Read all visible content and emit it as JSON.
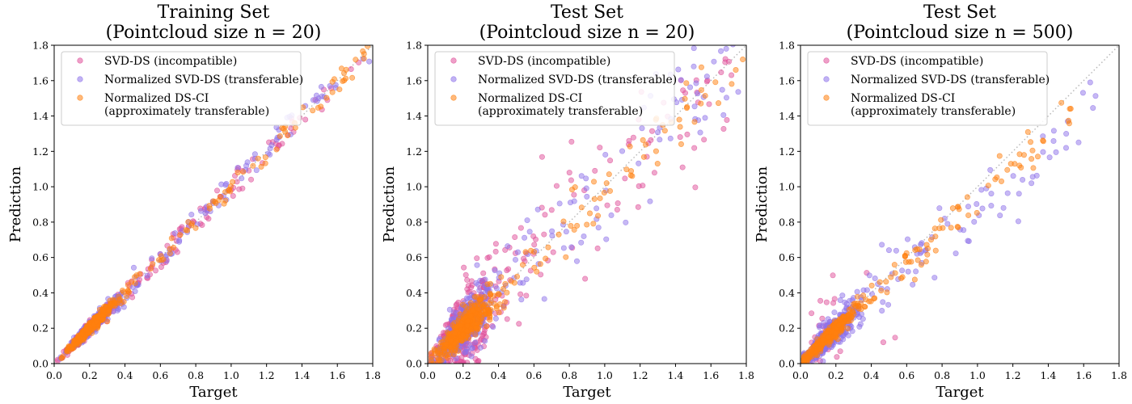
{
  "figure": {
    "colors": {
      "svd_ds": "#e0509a",
      "normalized_svd_ds": "#8e72ea",
      "normalized_ds_ci": "#ff7f0e",
      "identity_line": "#b5b5b5"
    }
  },
  "chart_data": [
    {
      "type": "scatter",
      "title": [
        "Training Set",
        "(Pointcloud size n = 20)"
      ],
      "xlabel": "Target",
      "ylabel": "Prediction",
      "xlim": [
        0.0,
        1.8
      ],
      "ylim": [
        0.0,
        1.8
      ],
      "xticks": [
        "0.0",
        "0.2",
        "0.4",
        "0.6",
        "0.8",
        "1.0",
        "1.2",
        "1.4",
        "1.6",
        "1.8"
      ],
      "yticks": [
        "0.0",
        "0.2",
        "0.4",
        "0.6",
        "0.8",
        "1.0",
        "1.2",
        "1.4",
        "1.6",
        "1.8"
      ],
      "grid": false,
      "legend_position": "upper-left",
      "reference_line": "y = x (dotted)",
      "series": [
        {
          "name": "SVD-DS (incompatible)",
          "color": "#e0509a",
          "seed": 101,
          "points": 420,
          "center": 0.2,
          "spread": 0.04,
          "tail_max": 1.8,
          "noise": 0.03,
          "skew": 0.0
        },
        {
          "name": "Normalized SVD-DS (transferable)",
          "color": "#8e72ea",
          "seed": 202,
          "points": 420,
          "center": 0.2,
          "spread": 0.04,
          "tail_max": 1.8,
          "noise": 0.03,
          "skew": 0.0
        },
        {
          "name": "Normalized DS-CI\n(approximately transferable)",
          "color": "#ff7f0e",
          "seed": 303,
          "points": 420,
          "center": 0.2,
          "spread": 0.04,
          "tail_max": 1.8,
          "noise": 0.025,
          "skew": 0.0
        }
      ]
    },
    {
      "type": "scatter",
      "title": [
        "Test Set",
        "(Pointcloud size n = 20)"
      ],
      "xlabel": "Target",
      "ylabel": "Prediction",
      "xlim": [
        0.0,
        1.8
      ],
      "ylim": [
        0.0,
        1.8
      ],
      "xticks": [
        "0.0",
        "0.2",
        "0.4",
        "0.6",
        "0.8",
        "1.0",
        "1.2",
        "1.4",
        "1.6",
        "1.8"
      ],
      "yticks": [
        "0.0",
        "0.2",
        "0.4",
        "0.6",
        "0.8",
        "1.0",
        "1.2",
        "1.4",
        "1.6",
        "1.8"
      ],
      "grid": false,
      "legend_position": "upper-left",
      "reference_line": "y = x (dotted)",
      "series": [
        {
          "name": "SVD-DS (incompatible)",
          "color": "#e0509a",
          "seed": 404,
          "points": 420,
          "center": 0.2,
          "spread": 0.05,
          "tail_max": 1.8,
          "noise": 0.18,
          "skew": 0.0
        },
        {
          "name": "Normalized SVD-DS (transferable)",
          "color": "#8e72ea",
          "seed": 505,
          "points": 420,
          "center": 0.2,
          "spread": 0.05,
          "tail_max": 1.8,
          "noise": 0.13,
          "skew": 0.0
        },
        {
          "name": "Normalized DS-CI\n(approximately transferable)",
          "color": "#ff7f0e",
          "seed": 606,
          "points": 420,
          "center": 0.2,
          "spread": 0.05,
          "tail_max": 1.8,
          "noise": 0.07,
          "skew": 0.0
        }
      ]
    },
    {
      "type": "scatter",
      "title": [
        "Test Set",
        "(Pointcloud size n = 500)"
      ],
      "xlabel": "Target",
      "ylabel": "Prediction",
      "xlim": [
        0.0,
        1.8
      ],
      "ylim": [
        0.0,
        1.8
      ],
      "xticks": [
        "0.0",
        "0.2",
        "0.4",
        "0.6",
        "0.8",
        "1.0",
        "1.2",
        "1.4",
        "1.6",
        "1.8"
      ],
      "yticks": [
        "0.0",
        "0.2",
        "0.4",
        "0.6",
        "0.8",
        "1.0",
        "1.2",
        "1.4",
        "1.6",
        "1.8"
      ],
      "grid": false,
      "legend_position": "upper-left",
      "reference_line": "y = x (dotted)",
      "series": [
        {
          "name": "SVD-DS (incompatible)",
          "color": "#e0509a",
          "seed": 707,
          "points": 25,
          "center": 0.12,
          "spread": 0.03,
          "tail_max": 0.6,
          "noise": 0.4,
          "skew": 0.0
        },
        {
          "name": "Normalized SVD-DS (transferable)",
          "color": "#8e72ea",
          "seed": 808,
          "points": 420,
          "center": 0.15,
          "spread": 0.05,
          "tail_max": 1.7,
          "noise": 0.08,
          "skew": -0.15
        },
        {
          "name": "Normalized DS-CI\n(approximately transferable)",
          "color": "#ff7f0e",
          "seed": 909,
          "points": 420,
          "center": 0.15,
          "spread": 0.05,
          "tail_max": 1.55,
          "noise": 0.04,
          "skew": -0.08
        }
      ]
    }
  ]
}
